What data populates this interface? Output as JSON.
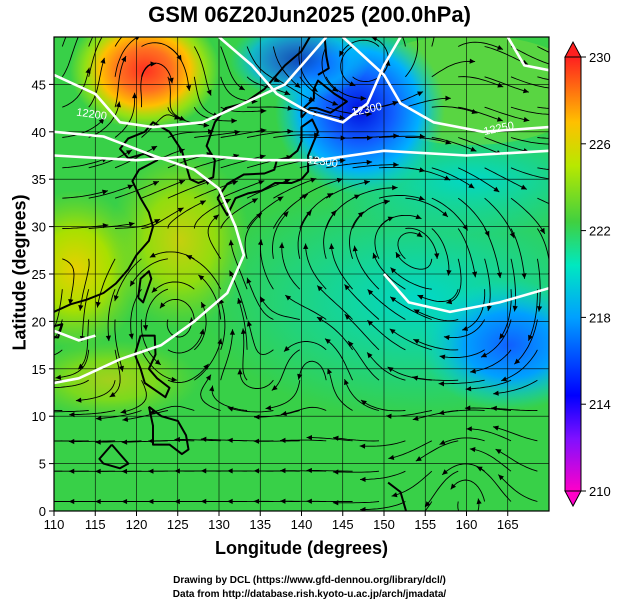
{
  "title": "GSM 06Z20Jun2025 (200.0hPa)",
  "xaxis": {
    "label": "Longitude (degrees)",
    "min": 110,
    "max": 170,
    "ticks": [
      110,
      115,
      120,
      125,
      130,
      135,
      140,
      145,
      150,
      155,
      160,
      165
    ]
  },
  "yaxis": {
    "label": "Latitude  (degrees)",
    "min": 0,
    "max": 50,
    "ticks": [
      0,
      5,
      10,
      15,
      20,
      25,
      30,
      35,
      40,
      45
    ]
  },
  "colorbar": {
    "min": 210,
    "max": 230,
    "ticks": [
      210,
      214,
      218,
      222,
      226,
      230
    ]
  },
  "contours": [
    {
      "label": "12200",
      "lon": 114.5,
      "lat": 41.5
    },
    {
      "label": "12300",
      "lon": 148.0,
      "lat": 42.0
    },
    {
      "label": "12300",
      "lon": 142.5,
      "lat": 36.5
    },
    {
      "label": "12250",
      "lon": 164.0,
      "lat": 40.0
    }
  ],
  "credits": {
    "line1": "Drawing by DCL (https://www.gfd-dennou.org/library/dcl/)",
    "line2": "Data from http://database.rish.kyoto-u.ac.jp/arch/jmadata/"
  },
  "chart_data": {
    "type": "heatmap",
    "title": "GSM 06Z20Jun2025 (200.0hPa)",
    "xlabel": "Longitude (degrees)",
    "ylabel": "Latitude  (degrees)",
    "xlim": [
      110,
      170
    ],
    "ylim": [
      0,
      50
    ],
    "colorbar_range": [
      210,
      230
    ],
    "colorbar_ticks": [
      210,
      214,
      218,
      222,
      226,
      230
    ],
    "colorbar_colors": [
      "#ff00c8",
      "#0000ff",
      "#00a0ff",
      "#00e8c0",
      "#40d040",
      "#b8e800",
      "#ffc000",
      "#ff2020"
    ],
    "features": [
      {
        "name": "warm core",
        "lon": 121.5,
        "lat": 46.5,
        "value": 230
      },
      {
        "name": "cold trough",
        "lon": 146.5,
        "lat": 45.0,
        "value": 214
      },
      {
        "name": "cold low",
        "lon": 166.0,
        "lat": 20.5,
        "value": 216
      },
      {
        "name": "warm ridge",
        "lon": 110.5,
        "lat": 27.5,
        "value": 226
      },
      {
        "name": "background",
        "lon": 140.0,
        "lat": 10.0,
        "value": 222
      }
    ],
    "contour_levels": [
      12200,
      12250,
      12300
    ]
  }
}
